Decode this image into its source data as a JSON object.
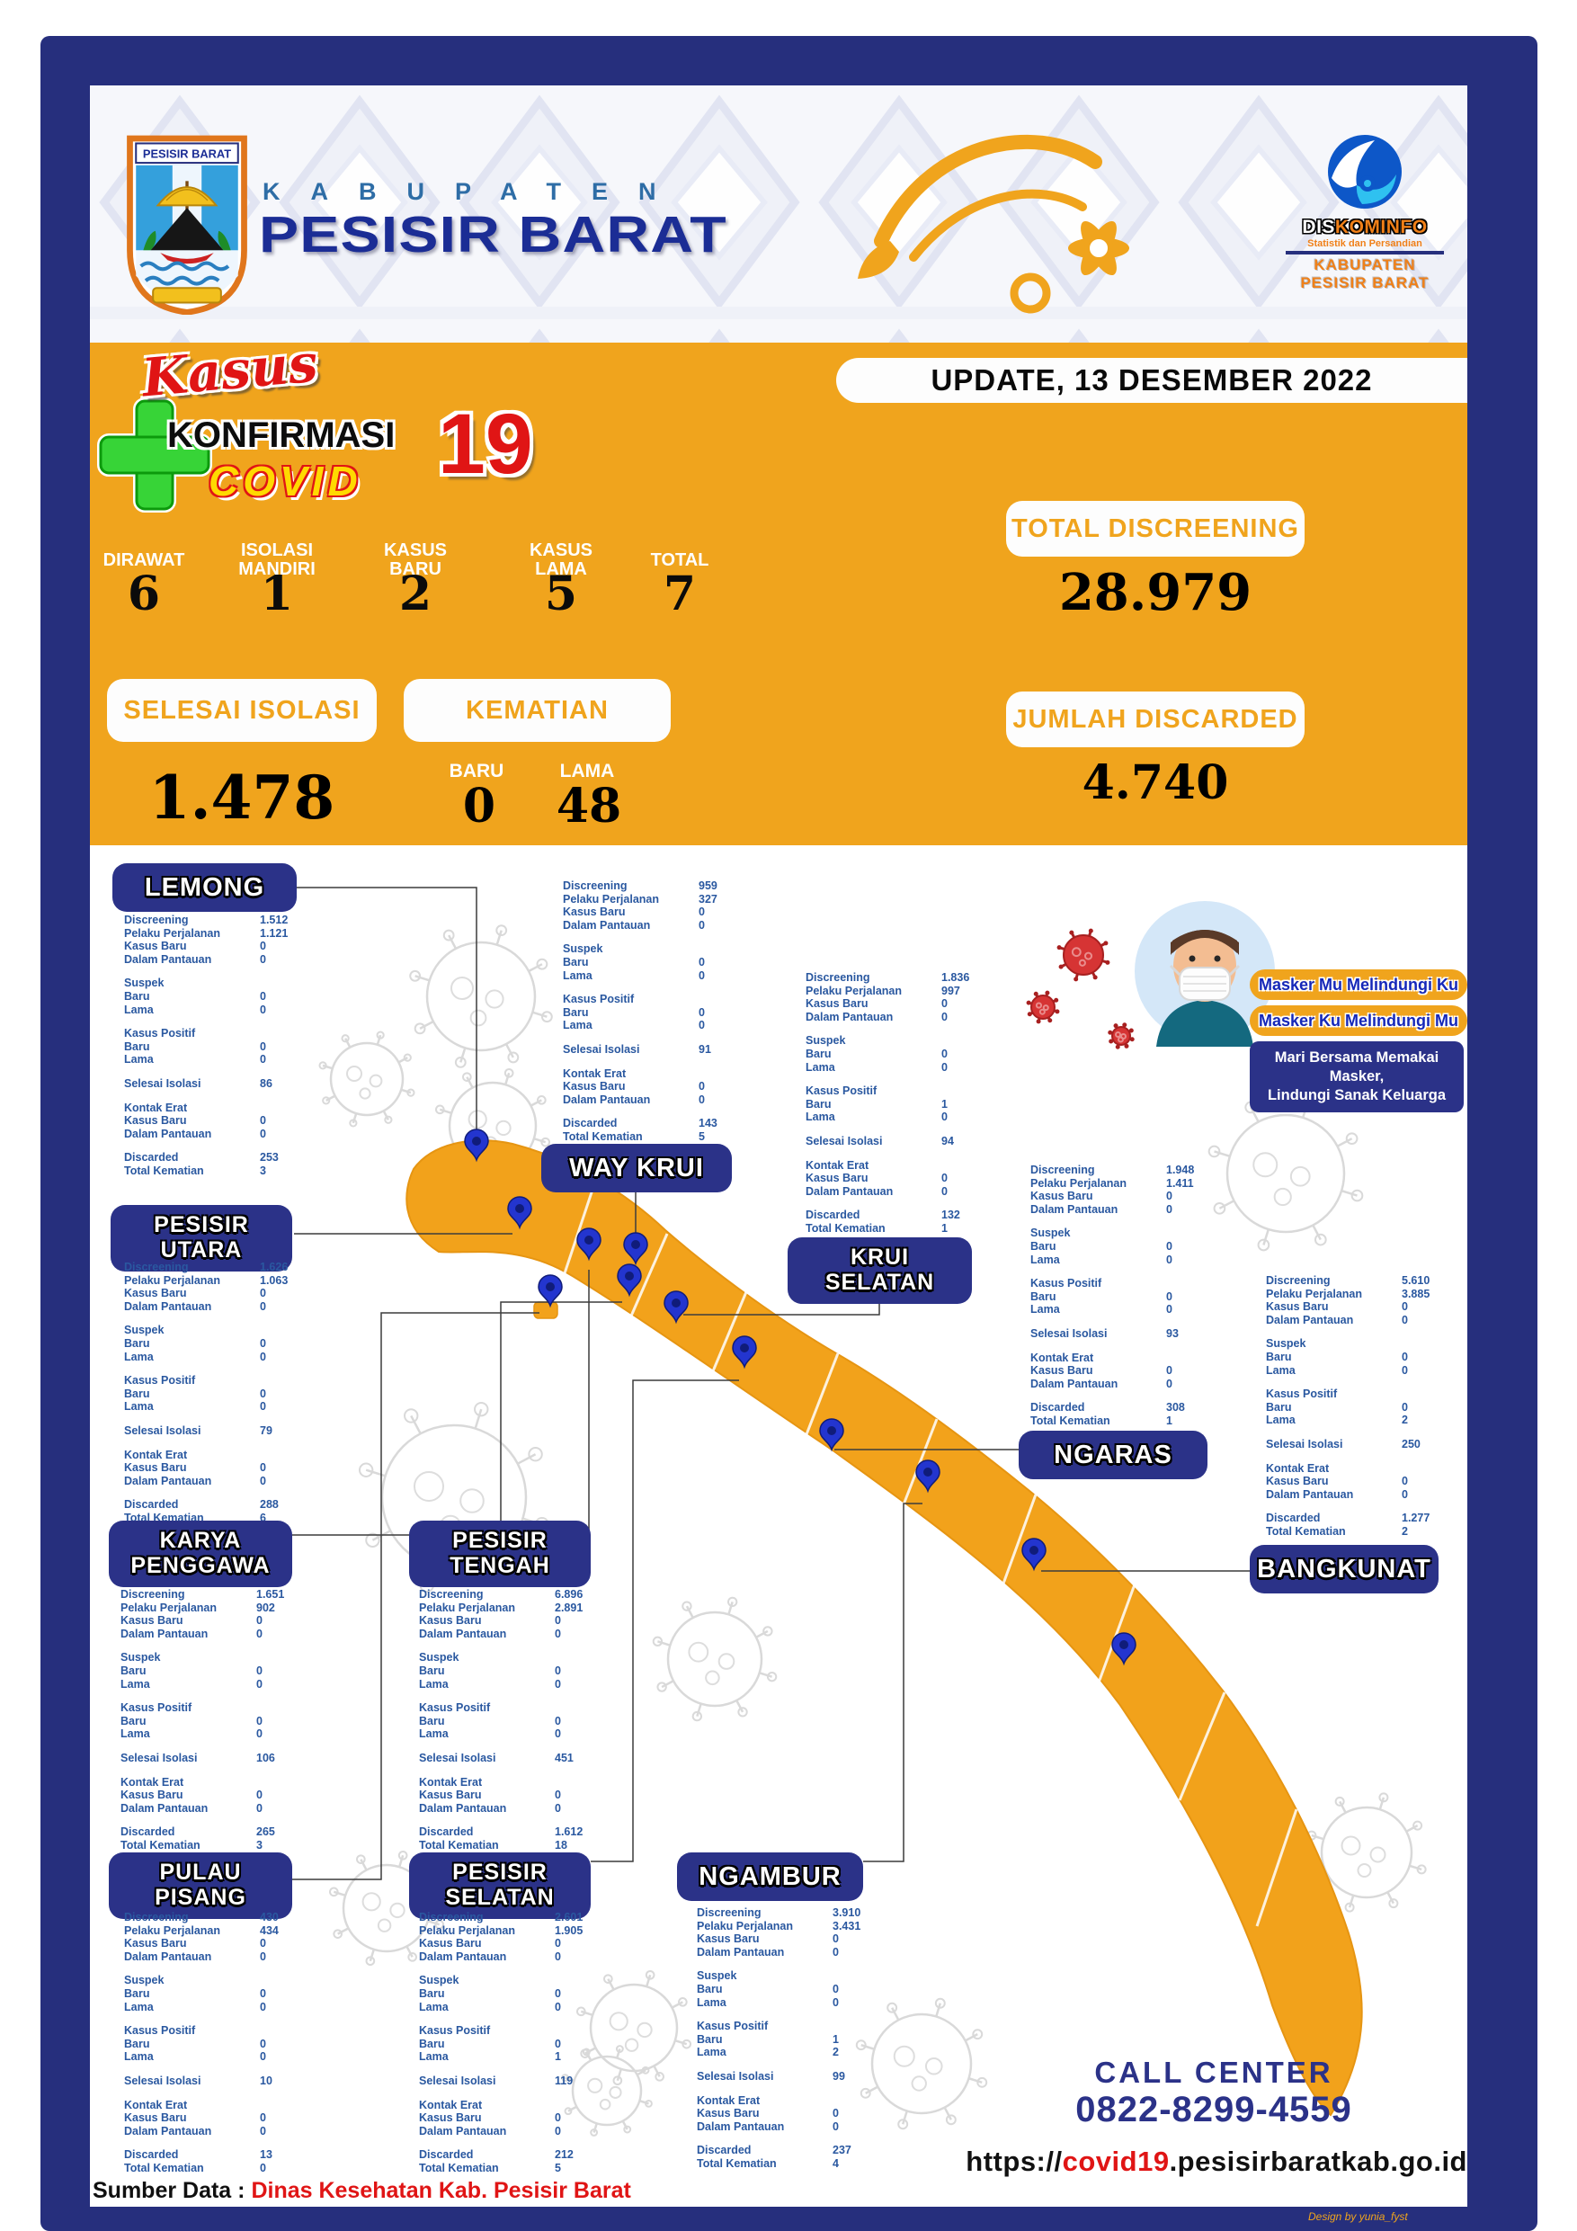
{
  "header": {
    "crest_label": "PESISIR BARAT",
    "kabupaten": "KABUPATEN",
    "region": "PESISIR BARAT",
    "diskominfo": {
      "name_dis": "DIS",
      "name_kominfo": "KOMINFO",
      "subtitle": "Statistik dan Persandian",
      "line1": "KABUPATEN",
      "line2": "PESISIR BARAT"
    }
  },
  "banner": {
    "update_text": "UPDATE, 13 DESEMBER 2022",
    "logo": {
      "script": "Kasus",
      "line1": "KONFIRMASI",
      "covid": "COVID",
      "nineteen": "19"
    },
    "summary": [
      {
        "label_lines": [
          "DIRAWAT"
        ],
        "value": "6"
      },
      {
        "label_lines": [
          "ISOLASI",
          "MANDIRI"
        ],
        "value": "1"
      },
      {
        "label_lines": [
          "KASUS",
          "BARU"
        ],
        "value": "2"
      },
      {
        "label_lines": [
          "KASUS",
          "LAMA"
        ],
        "value": "5"
      },
      {
        "label_lines": [
          "TOTAL"
        ],
        "value": "7"
      }
    ],
    "total_discreening": {
      "label": "TOTAL DISCREENING",
      "value": "28.979"
    },
    "selesai_isolasi": {
      "label": "SELESAI ISOLASI",
      "value": "1.478"
    },
    "kematian": {
      "label": "KEMATIAN",
      "baru_label": "BARU",
      "baru": "0",
      "lama_label": "LAMA",
      "lama": "48"
    },
    "jumlah_discarded": {
      "label": "JUMLAH DISCARDED",
      "value": "4.740"
    }
  },
  "panel_row_labels": {
    "discreening": "Discreening",
    "pelaku_perjalanan": "Pelaku Perjalanan",
    "kasus_baru": "Kasus Baru",
    "dalam_pantauan": "Dalam Pantauan",
    "suspek": "Suspek",
    "baru": "Baru",
    "lama": "Lama",
    "kasus_positif": "Kasus Positif",
    "selesai_isolasi": "Selesai Isolasi",
    "kontak_erat": "Kontak Erat",
    "discarded": "Discarded",
    "total_kematian": "Total Kematian"
  },
  "districts": [
    {
      "id": "lemong",
      "name": [
        "LEMONG"
      ],
      "values": {
        "discreening": "1.512",
        "pelaku_perjalanan": "1.121",
        "kasus_baru": "0",
        "dalam_pantauan": "0",
        "suspek_baru": "0",
        "suspek_lama": "0",
        "positif_baru": "0",
        "positif_lama": "0",
        "selesai_isolasi": "86",
        "kontak_kasus_baru": "0",
        "kontak_dalam_pantauan": "0",
        "discarded": "253",
        "total_kematian": "3"
      }
    },
    {
      "id": "way-krui",
      "name": [
        "WAY KRUI"
      ],
      "values": {
        "discreening": "959",
        "pelaku_perjalanan": "327",
        "kasus_baru": "0",
        "dalam_pantauan": "0",
        "suspek_baru": "0",
        "suspek_lama": "0",
        "positif_baru": "0",
        "positif_lama": "0",
        "selesai_isolasi": "91",
        "kontak_kasus_baru": "0",
        "kontak_dalam_pantauan": "0",
        "discarded": "143",
        "total_kematian": "5"
      }
    },
    {
      "id": "krui-selatan",
      "name": [
        "KRUI",
        "SELATAN"
      ],
      "values": {
        "discreening": "1.836",
        "pelaku_perjalanan": "997",
        "kasus_baru": "0",
        "dalam_pantauan": "0",
        "suspek_baru": "0",
        "suspek_lama": "0",
        "positif_baru": "1",
        "positif_lama": "0",
        "selesai_isolasi": "94",
        "kontak_kasus_baru": "0",
        "kontak_dalam_pantauan": "0",
        "discarded": "132",
        "total_kematian": "1"
      }
    },
    {
      "id": "pesisir-utara",
      "name": [
        "PESISIR",
        "UTARA"
      ],
      "values": {
        "discreening": "1.626",
        "pelaku_perjalanan": "1.063",
        "kasus_baru": "0",
        "dalam_pantauan": "0",
        "suspek_baru": "0",
        "suspek_lama": "0",
        "positif_baru": "0",
        "positif_lama": "0",
        "selesai_isolasi": "79",
        "kontak_kasus_baru": "0",
        "kontak_dalam_pantauan": "0",
        "discarded": "288",
        "total_kematian": "6"
      }
    },
    {
      "id": "ngaras",
      "name": [
        "NGARAS"
      ],
      "values": {
        "discreening": "1.948",
        "pelaku_perjalanan": "1.411",
        "kasus_baru": "0",
        "dalam_pantauan": "0",
        "suspek_baru": "0",
        "suspek_lama": "0",
        "positif_baru": "0",
        "positif_lama": "0",
        "selesai_isolasi": "93",
        "kontak_kasus_baru": "0",
        "kontak_dalam_pantauan": "0",
        "discarded": "308",
        "total_kematian": "1"
      }
    },
    {
      "id": "karya-penggawa",
      "name": [
        "KARYA",
        "PENGGAWA"
      ],
      "values": {
        "discreening": "1.651",
        "pelaku_perjalanan": "902",
        "kasus_baru": "0",
        "dalam_pantauan": "0",
        "suspek_baru": "0",
        "suspek_lama": "0",
        "positif_baru": "0",
        "positif_lama": "0",
        "selesai_isolasi": "106",
        "kontak_kasus_baru": "0",
        "kontak_dalam_pantauan": "0",
        "discarded": "265",
        "total_kematian": "3"
      }
    },
    {
      "id": "pesisir-tengah",
      "name": [
        "PESISIR",
        "TENGAH"
      ],
      "values": {
        "discreening": "6.896",
        "pelaku_perjalanan": "2.891",
        "kasus_baru": "0",
        "dalam_pantauan": "0",
        "suspek_baru": "0",
        "suspek_lama": "0",
        "positif_baru": "0",
        "positif_lama": "0",
        "selesai_isolasi": "451",
        "kontak_kasus_baru": "0",
        "kontak_dalam_pantauan": "0",
        "discarded": "1.612",
        "total_kematian": "18"
      }
    },
    {
      "id": "bangkunat",
      "name": [
        "BANGKUNAT"
      ],
      "values": {
        "discreening": "5.610",
        "pelaku_perjalanan": "3.885",
        "kasus_baru": "0",
        "dalam_pantauan": "0",
        "suspek_baru": "0",
        "suspek_lama": "0",
        "positif_baru": "0",
        "positif_lama": "2",
        "selesai_isolasi": "250",
        "kontak_kasus_baru": "0",
        "kontak_dalam_pantauan": "0",
        "discarded": "1.277",
        "total_kematian": "2"
      }
    },
    {
      "id": "pulau-pisang",
      "name": [
        "PULAU",
        "PISANG"
      ],
      "values": {
        "discreening": "430",
        "pelaku_perjalanan": "434",
        "kasus_baru": "0",
        "dalam_pantauan": "0",
        "suspek_baru": "0",
        "suspek_lama": "0",
        "positif_baru": "0",
        "positif_lama": "0",
        "selesai_isolasi": "10",
        "kontak_kasus_baru": "0",
        "kontak_dalam_pantauan": "0",
        "discarded": "13",
        "total_kematian": "0"
      }
    },
    {
      "id": "pesisir-selatan",
      "name": [
        "PESISIR",
        "SELATAN"
      ],
      "values": {
        "discreening": "2.601",
        "pelaku_perjalanan": "1.905",
        "kasus_baru": "0",
        "dalam_pantauan": "0",
        "suspek_baru": "0",
        "suspek_lama": "0",
        "positif_baru": "0",
        "positif_lama": "1",
        "selesai_isolasi": "119",
        "kontak_kasus_baru": "0",
        "kontak_dalam_pantauan": "0",
        "discarded": "212",
        "total_kematian": "5"
      }
    },
    {
      "id": "ngambur",
      "name": [
        "NGAMBUR"
      ],
      "values": {
        "discreening": "3.910",
        "pelaku_perjalanan": "3.431",
        "kasus_baru": "0",
        "dalam_pantauan": "0",
        "suspek_baru": "0",
        "suspek_lama": "0",
        "positif_baru": "1",
        "positif_lama": "2",
        "selesai_isolasi": "99",
        "kontak_kasus_baru": "0",
        "kontak_dalam_pantauan": "0",
        "discarded": "237",
        "total_kematian": "4"
      }
    }
  ],
  "psa": {
    "pill1": "Masker Mu Melindungi Ku",
    "pill2": "Masker Ku Melindungi Mu",
    "box_line1": "Mari Bersama Memakai Masker,",
    "box_line2": "Lindungi Sanak Keluarga"
  },
  "call_center": {
    "label": "CALL CENTER",
    "phone": "0822-8299-4559"
  },
  "footer": {
    "sumber_prefix": "Sumber Data :",
    "sumber_value": "Dinas Kesehatan Kab. Pesisir Barat",
    "url_prefix": "https://",
    "url_highlight": "covid19",
    "url_suffix": ".pesisirbaratkab.go.id",
    "credit": "Design by yunia_fyst"
  },
  "colors": {
    "frame_navy": "#262f7d",
    "accent_orange": "#f0a41d",
    "panel_blue": "#2a58a0",
    "alert_red": "#e01515",
    "pin_blue": "#2335cf"
  }
}
